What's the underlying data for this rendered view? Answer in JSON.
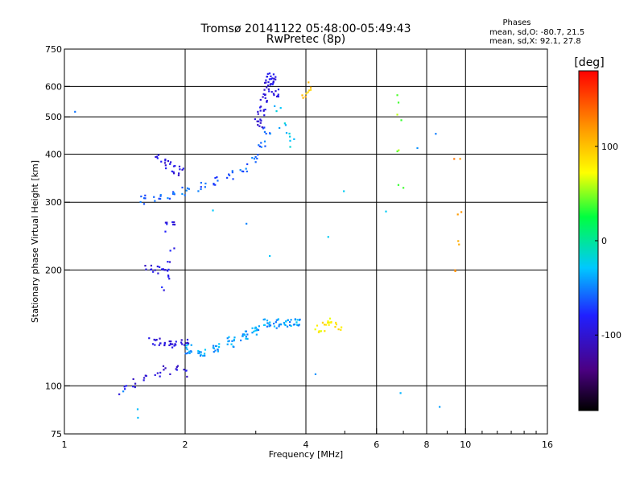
{
  "chart_data": {
    "type": "scatter",
    "title": "Tromsø 20141122 05:48:00-05:49:43",
    "subtitle": "RwPretec (8p)",
    "phases": {
      "heading": "Phases",
      "line_o": "mean, sd,O: -80.7, 21.5",
      "line_x": "mean, sd,X:  92.1, 27.8"
    },
    "xlabel": "Frequency [MHz]",
    "ylabel": "Stationary phase Virtual Height [km]",
    "x_scale": "log",
    "y_scale": "log",
    "xlim": [
      1,
      16
    ],
    "ylim": [
      75,
      750
    ],
    "grid": true,
    "x_ticks": [
      1,
      2,
      4,
      6,
      8,
      10,
      16
    ],
    "x_tick_labels": [
      "1",
      "2",
      "4",
      "6",
      "8",
      "10",
      "16"
    ],
    "x_minor_ticks": [
      3,
      5,
      7,
      9,
      11,
      12,
      13,
      14,
      15
    ],
    "x_grid": [
      2,
      4,
      6,
      8,
      10
    ],
    "y_ticks": [
      75,
      100,
      200,
      300,
      400,
      500,
      600,
      750
    ],
    "y_tick_labels": [
      "75",
      "100",
      "200",
      "300",
      "400",
      "500",
      "600",
      "750"
    ],
    "y_grid": [
      100,
      200,
      300,
      400,
      500,
      600
    ],
    "colorbar": {
      "label": "[deg]",
      "range": [
        -180,
        180
      ],
      "ticks": [
        -100,
        0,
        100
      ],
      "tick_labels": [
        "-100",
        "0",
        "100"
      ],
      "colors": [
        "#000000",
        "#4b0082",
        "#2020ff",
        "#00c8ff",
        "#00ff40",
        "#ffff00",
        "#ff9900",
        "#ff0000"
      ],
      "stops": [
        0,
        0.12,
        0.28,
        0.42,
        0.57,
        0.7,
        0.83,
        1
      ]
    },
    "traces": [
      {
        "name": "",
        "x": [
          1.65,
          1.7,
          1.75,
          1.8,
          1.85,
          1.9,
          1.95,
          2.0
        ],
        "y": [
          130,
          130,
          130,
          129,
          129,
          130,
          130,
          128
        ],
        "phase": -95,
        "n": 34
      },
      {
        "name": "",
        "x": [
          1.62,
          1.66,
          1.7,
          1.75,
          1.8
        ],
        "y": [
          200,
          201,
          200,
          199,
          198
        ],
        "phase": -95,
        "n": 14
      },
      {
        "name": "",
        "x": [
          1.78,
          1.8,
          1.82,
          1.84,
          1.86
        ],
        "y": [
          180,
          192,
          205,
          215,
          225
        ],
        "phase": -90,
        "n": 10
      },
      {
        "name": "",
        "x": [
          1.8,
          1.82,
          1.84,
          1.86
        ],
        "y": [
          258,
          262,
          266,
          270
        ],
        "phase": -92,
        "n": 8
      },
      {
        "name": "",
        "x": [
          1.7,
          1.75,
          1.8,
          1.85,
          1.9,
          1.95
        ],
        "y": [
          395,
          385,
          375,
          370,
          365,
          360
        ],
        "phase": -95,
        "n": 22
      },
      {
        "name": "",
        "x": [
          1.58,
          1.7,
          1.85,
          2.0,
          2.2,
          2.4,
          2.6,
          2.8,
          3.0,
          3.1,
          3.2
        ],
        "y": [
          305,
          308,
          315,
          322,
          330,
          340,
          355,
          370,
          390,
          420,
          460
        ],
        "phase": -60,
        "n": 70
      },
      {
        "name": "",
        "x": [
          3.05,
          3.1,
          3.15,
          3.2,
          3.25,
          3.3,
          3.35
        ],
        "y": [
          480,
          520,
          560,
          600,
          630,
          620,
          580
        ],
        "phase": -95,
        "n": 60
      },
      {
        "name": "",
        "x": [
          3.4,
          3.5,
          3.6,
          3.7
        ],
        "y": [
          520,
          480,
          450,
          430
        ],
        "phase": -30,
        "n": 12
      },
      {
        "name": "",
        "x": [
          1.4,
          1.5,
          1.6,
          1.7,
          1.8,
          1.9,
          2.0
        ],
        "y": [
          98,
          102,
          105,
          108,
          110,
          110,
          108
        ],
        "phase": -95,
        "n": 30
      },
      {
        "name": "",
        "x": [
          2.05,
          2.2,
          2.4,
          2.6,
          2.8,
          3.0,
          3.2,
          3.4,
          3.6,
          3.8
        ],
        "y": [
          125,
          122,
          125,
          130,
          135,
          140,
          145,
          145,
          145,
          145
        ],
        "phase": -40,
        "n": 120
      },
      {
        "name": "",
        "x": [
          4.3,
          4.4,
          4.5,
          4.6,
          4.7,
          4.8
        ],
        "y": [
          140,
          142,
          145,
          148,
          146,
          144
        ],
        "phase": 80,
        "n": 22
      },
      {
        "name": "",
        "x": [
          3.95,
          4.0,
          4.05
        ],
        "y": [
          560,
          580,
          600
        ],
        "phase": 100,
        "n": 10
      },
      {
        "name": "",
        "x": [
          6.9,
          6.9,
          6.9,
          6.95
        ],
        "y": [
          560,
          500,
          400,
          330
        ],
        "phase": 50,
        "n": 6
      },
      {
        "name": "",
        "x": [
          9.5,
          9.6,
          9.6,
          9.55
        ],
        "y": [
          400,
          280,
          240,
          200
        ],
        "phase": 120,
        "n": 6
      },
      {
        "name": "",
        "x": [
          1.08,
          1.38,
          1.5,
          1.55,
          2.3,
          2.8,
          3.3,
          4.5,
          5.0,
          6.2,
          7.5,
          8.5,
          8.6,
          6.9,
          4.3
        ],
        "y": [
          505,
          94,
          88,
          85,
          285,
          265,
          212,
          250,
          325,
          280,
          410,
          440,
          90,
          97,
          106
        ],
        "phase": -40,
        "n": 15
      }
    ]
  }
}
